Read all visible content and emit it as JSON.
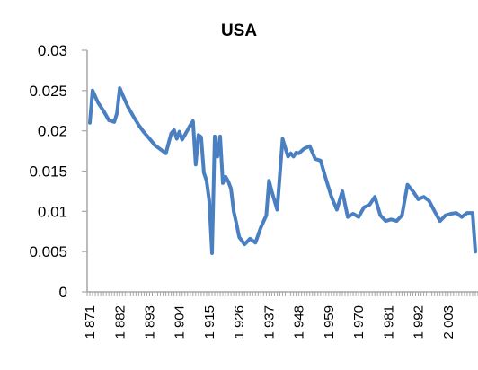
{
  "chart_data": {
    "type": "line",
    "title": "USA",
    "xlabel": "",
    "ylabel": "",
    "ylim": [
      0,
      0.03
    ],
    "xlim": [
      1870,
      2014
    ],
    "y_ticks": [
      "0",
      "0.005",
      "0.01",
      "0.015",
      "0.02",
      "0.025",
      "0.03"
    ],
    "x_ticks": [
      "1 871",
      "1 882",
      "1 893",
      "1 904",
      "1 915",
      "1 926",
      "1 937",
      "1 948",
      "1 959",
      "1 970",
      "1 981",
      "1 992",
      "2 003"
    ],
    "grid": false,
    "legend": "none",
    "colors": {
      "line": "#4a7fc1",
      "axis": "#a6a6a6"
    },
    "series": [
      {
        "x": [
          1871,
          1872,
          1874,
          1876,
          1878,
          1880,
          1881,
          1882,
          1883,
          1885,
          1887,
          1889,
          1891,
          1893,
          1895,
          1897,
          1899,
          1901,
          1902,
          1903,
          1904,
          1905,
          1906,
          1907,
          1908,
          1909,
          1910,
          1911,
          1912,
          1913,
          1914,
          1915,
          1916,
          1917,
          1918,
          1919,
          1920,
          1921,
          1922,
          1923,
          1924,
          1925,
          1926,
          1928,
          1930,
          1932,
          1934,
          1936,
          1937,
          1938,
          1940,
          1942,
          1944,
          1945,
          1946,
          1947,
          1948,
          1950,
          1952,
          1954,
          1956,
          1958,
          1960,
          1962,
          1964,
          1966,
          1968,
          1970,
          1972,
          1974,
          1976,
          1978,
          1980,
          1982,
          1984,
          1986,
          1988,
          1990,
          1992,
          1994,
          1996,
          1998,
          2000,
          2002,
          2004,
          2006,
          2008,
          2010,
          2012,
          2013
        ],
        "y": [
          0.021,
          0.025,
          0.0235,
          0.0225,
          0.0213,
          0.0211,
          0.0222,
          0.0253,
          0.0245,
          0.023,
          0.0218,
          0.0207,
          0.0198,
          0.019,
          0.0182,
          0.0177,
          0.0172,
          0.0197,
          0.0201,
          0.019,
          0.0199,
          0.0189,
          0.0195,
          0.0201,
          0.0207,
          0.0212,
          0.0158,
          0.0195,
          0.0192,
          0.0148,
          0.0138,
          0.0113,
          0.0048,
          0.0193,
          0.0168,
          0.0193,
          0.0135,
          0.0143,
          0.0137,
          0.0128,
          0.01,
          0.0085,
          0.0068,
          0.0059,
          0.0066,
          0.0061,
          0.008,
          0.0095,
          0.0138,
          0.0125,
          0.0102,
          0.019,
          0.0168,
          0.0172,
          0.0168,
          0.0173,
          0.0172,
          0.0178,
          0.0181,
          0.0165,
          0.0163,
          0.014,
          0.0118,
          0.0102,
          0.0125,
          0.0093,
          0.0097,
          0.0093,
          0.0105,
          0.0108,
          0.0118,
          0.0095,
          0.0088,
          0.009,
          0.0088,
          0.0095,
          0.0133,
          0.0125,
          0.0115,
          0.0118,
          0.0113,
          0.01,
          0.0088,
          0.0095,
          0.0097,
          0.0098,
          0.0093,
          0.0098,
          0.0098,
          0.005
        ]
      }
    ]
  }
}
